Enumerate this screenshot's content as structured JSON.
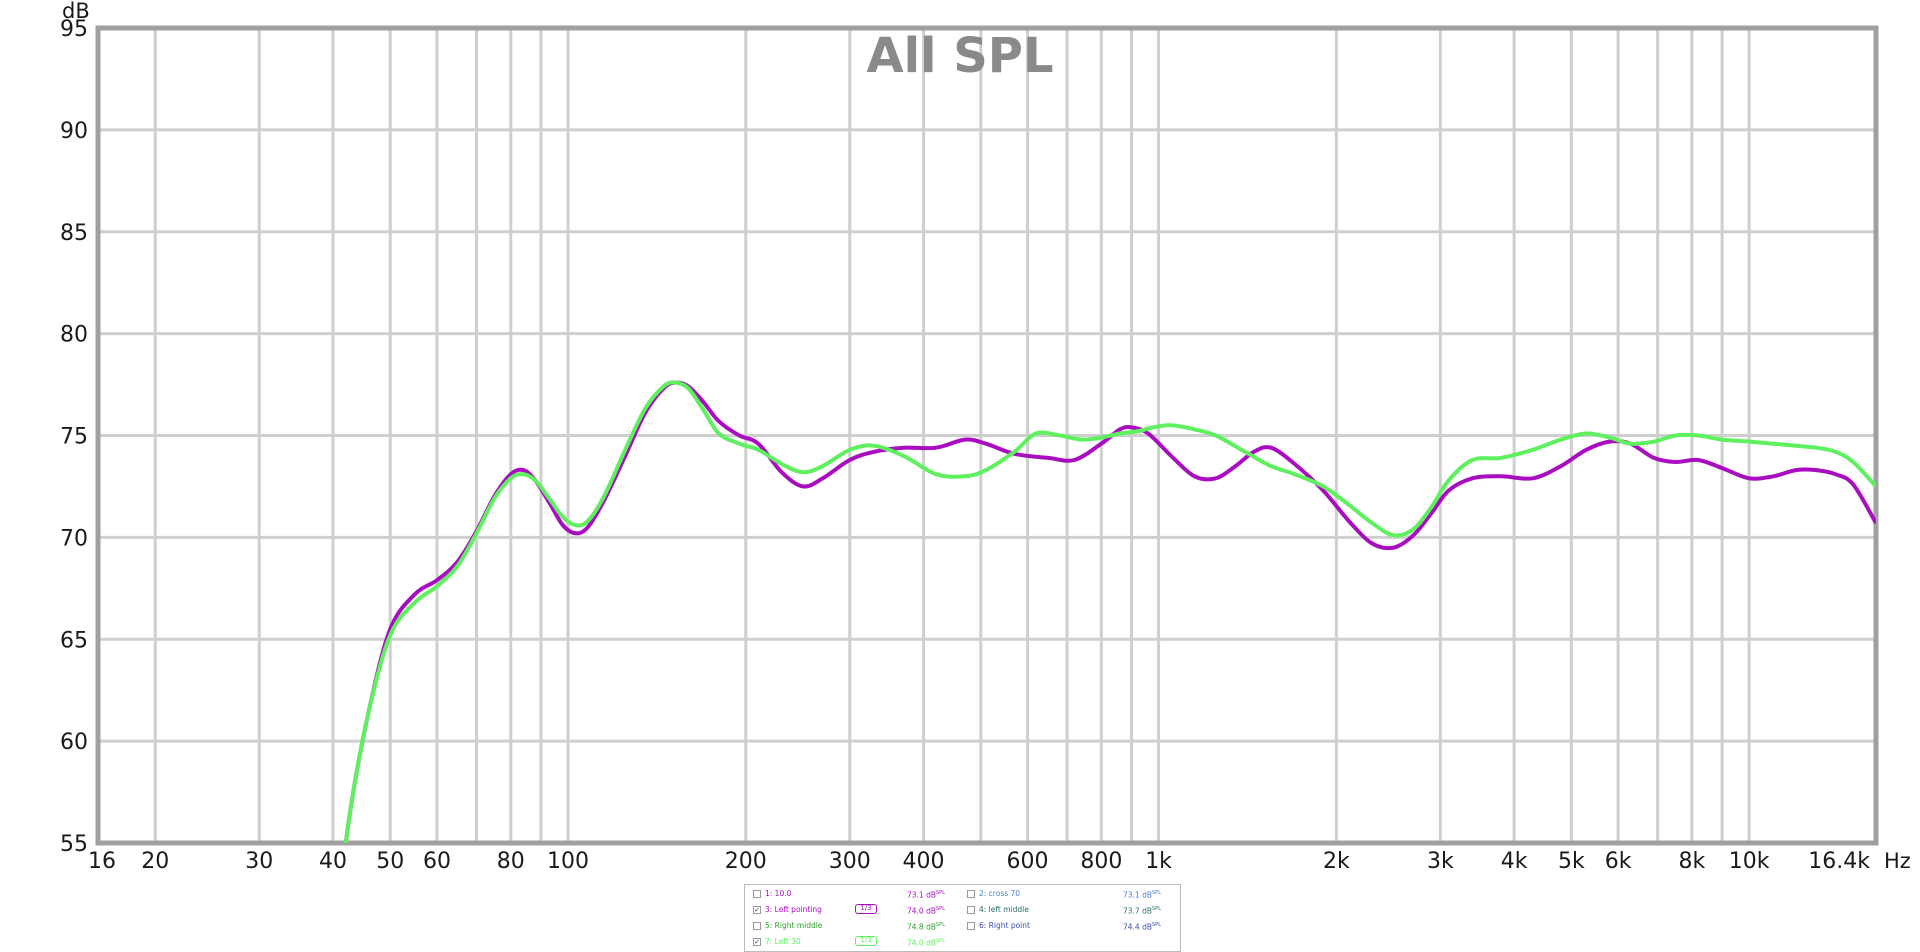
{
  "chart_data": {
    "type": "line",
    "title": "All SPL",
    "ylabel": "dB",
    "xunit": "Hz",
    "x_scale": "log",
    "xlim": [
      16,
      16400
    ],
    "ylim": [
      55,
      95
    ],
    "grid": true,
    "yticks": [
      55,
      60,
      65,
      70,
      75,
      80,
      85,
      90,
      95
    ],
    "xtick_labels": [
      {
        "f": 16,
        "label": "16"
      },
      {
        "f": 20,
        "label": "20"
      },
      {
        "f": 30,
        "label": "30"
      },
      {
        "f": 40,
        "label": "40"
      },
      {
        "f": 50,
        "label": "50"
      },
      {
        "f": 60,
        "label": "60"
      },
      {
        "f": 80,
        "label": "80"
      },
      {
        "f": 100,
        "label": "100"
      },
      {
        "f": 200,
        "label": "200"
      },
      {
        "f": 300,
        "label": "300"
      },
      {
        "f": 400,
        "label": "400"
      },
      {
        "f": 600,
        "label": "600"
      },
      {
        "f": 800,
        "label": "800"
      },
      {
        "f": 1000,
        "label": "1k"
      },
      {
        "f": 2000,
        "label": "2k"
      },
      {
        "f": 3000,
        "label": "3k"
      },
      {
        "f": 4000,
        "label": "4k"
      },
      {
        "f": 5000,
        "label": "5k"
      },
      {
        "f": 6000,
        "label": "6k"
      },
      {
        "f": 8000,
        "label": "8k"
      },
      {
        "f": 10000,
        "label": "10k"
      },
      {
        "f": 16400,
        "label": "16.4k"
      }
    ],
    "grid_freqs": [
      20,
      30,
      40,
      50,
      60,
      70,
      80,
      90,
      100,
      200,
      300,
      400,
      500,
      600,
      700,
      800,
      900,
      1000,
      2000,
      3000,
      4000,
      5000,
      6000,
      7000,
      8000,
      9000,
      10000
    ],
    "series": [
      {
        "name": "3: Left pointing",
        "color": "#a80dbf",
        "points": [
          [
            41,
            52.5
          ],
          [
            43,
            57
          ],
          [
            46,
            61.5
          ],
          [
            50,
            65.5
          ],
          [
            55,
            67.2
          ],
          [
            60,
            67.9
          ],
          [
            65,
            68.8
          ],
          [
            70,
            70.3
          ],
          [
            75,
            72
          ],
          [
            80,
            73.1
          ],
          [
            84,
            73.3
          ],
          [
            88,
            72.8
          ],
          [
            93,
            71.7
          ],
          [
            98,
            70.6
          ],
          [
            103,
            70.2
          ],
          [
            108,
            70.5
          ],
          [
            115,
            71.8
          ],
          [
            125,
            74
          ],
          [
            135,
            76.1
          ],
          [
            145,
            77.3
          ],
          [
            152,
            77.6
          ],
          [
            160,
            77.4
          ],
          [
            170,
            76.6
          ],
          [
            180,
            75.7
          ],
          [
            195,
            75
          ],
          [
            210,
            74.6
          ],
          [
            230,
            73.2
          ],
          [
            250,
            72.5
          ],
          [
            270,
            72.9
          ],
          [
            300,
            73.8
          ],
          [
            330,
            74.2
          ],
          [
            370,
            74.4
          ],
          [
            420,
            74.4
          ],
          [
            470,
            74.8
          ],
          [
            510,
            74.6
          ],
          [
            570,
            74.1
          ],
          [
            650,
            73.9
          ],
          [
            720,
            73.8
          ],
          [
            800,
            74.6
          ],
          [
            860,
            75.3
          ],
          [
            900,
            75.4
          ],
          [
            960,
            75.1
          ],
          [
            1050,
            74
          ],
          [
            1150,
            73
          ],
          [
            1250,
            72.9
          ],
          [
            1350,
            73.5
          ],
          [
            1450,
            74.2
          ],
          [
            1550,
            74.4
          ],
          [
            1700,
            73.6
          ],
          [
            1900,
            72.3
          ],
          [
            2100,
            70.8
          ],
          [
            2300,
            69.7
          ],
          [
            2500,
            69.5
          ],
          [
            2700,
            70.1
          ],
          [
            2900,
            71.2
          ],
          [
            3100,
            72.3
          ],
          [
            3400,
            72.9
          ],
          [
            3800,
            73
          ],
          [
            4300,
            72.9
          ],
          [
            4800,
            73.5
          ],
          [
            5300,
            74.3
          ],
          [
            5800,
            74.7
          ],
          [
            6300,
            74.6
          ],
          [
            6900,
            73.9
          ],
          [
            7500,
            73.7
          ],
          [
            8200,
            73.8
          ],
          [
            9000,
            73.4
          ],
          [
            10000,
            72.9
          ],
          [
            11000,
            73
          ],
          [
            12000,
            73.3
          ],
          [
            13000,
            73.3
          ],
          [
            14000,
            73.1
          ],
          [
            15000,
            72.6
          ],
          [
            16400,
            70.7
          ]
        ]
      },
      {
        "name": "7: Left 30",
        "color": "#5ef05e",
        "points": [
          [
            41,
            52.5
          ],
          [
            43,
            57
          ],
          [
            46,
            61.5
          ],
          [
            50,
            65.2
          ],
          [
            55,
            66.8
          ],
          [
            60,
            67.6
          ],
          [
            65,
            68.6
          ],
          [
            70,
            70.2
          ],
          [
            75,
            71.9
          ],
          [
            80,
            72.9
          ],
          [
            84,
            73.1
          ],
          [
            88,
            72.8
          ],
          [
            93,
            71.9
          ],
          [
            98,
            71
          ],
          [
            103,
            70.6
          ],
          [
            108,
            70.8
          ],
          [
            115,
            72
          ],
          [
            125,
            74.3
          ],
          [
            135,
            76.3
          ],
          [
            145,
            77.4
          ],
          [
            152,
            77.6
          ],
          [
            160,
            77.3
          ],
          [
            170,
            76.2
          ],
          [
            180,
            75.1
          ],
          [
            195,
            74.6
          ],
          [
            210,
            74.3
          ],
          [
            230,
            73.6
          ],
          [
            250,
            73.2
          ],
          [
            270,
            73.5
          ],
          [
            300,
            74.3
          ],
          [
            330,
            74.5
          ],
          [
            370,
            74
          ],
          [
            420,
            73.1
          ],
          [
            470,
            73
          ],
          [
            510,
            73.3
          ],
          [
            570,
            74.2
          ],
          [
            620,
            75.1
          ],
          [
            680,
            75
          ],
          [
            740,
            74.8
          ],
          [
            800,
            74.9
          ],
          [
            860,
            75.1
          ],
          [
            920,
            75.2
          ],
          [
            980,
            75.4
          ],
          [
            1050,
            75.5
          ],
          [
            1150,
            75.3
          ],
          [
            1250,
            75
          ],
          [
            1400,
            74.2
          ],
          [
            1550,
            73.5
          ],
          [
            1700,
            73.1
          ],
          [
            1900,
            72.5
          ],
          [
            2100,
            71.6
          ],
          [
            2300,
            70.7
          ],
          [
            2500,
            70.1
          ],
          [
            2700,
            70.4
          ],
          [
            2900,
            71.5
          ],
          [
            3100,
            72.8
          ],
          [
            3400,
            73.8
          ],
          [
            3800,
            73.9
          ],
          [
            4300,
            74.3
          ],
          [
            4800,
            74.8
          ],
          [
            5300,
            75.1
          ],
          [
            5800,
            74.9
          ],
          [
            6300,
            74.6
          ],
          [
            6900,
            74.7
          ],
          [
            7500,
            75
          ],
          [
            8200,
            75
          ],
          [
            9000,
            74.8
          ],
          [
            10000,
            74.7
          ],
          [
            11000,
            74.6
          ],
          [
            12000,
            74.5
          ],
          [
            13000,
            74.4
          ],
          [
            14000,
            74.2
          ],
          [
            15000,
            73.7
          ],
          [
            16400,
            72.5
          ]
        ]
      }
    ],
    "legend": [
      {
        "label": "1: 10.0",
        "value": "73.1 dB",
        "unit": "SPL",
        "checked": false,
        "color": "#a80dbf"
      },
      {
        "label": "2: cross 70",
        "value": "73.1 dB",
        "unit": "SPL",
        "checked": false,
        "color": "#4a7fd0"
      },
      {
        "label": "3: Left pointing",
        "value": "74.0 dB",
        "unit": "SPL",
        "checked": true,
        "color": "#a80dbf",
        "smoothing": "1/3"
      },
      {
        "label": "4: left middle",
        "value": "73.7 dB",
        "unit": "SPL",
        "checked": false,
        "color": "#2e6e6e"
      },
      {
        "label": "5: Right middle",
        "value": "74.8 dB",
        "unit": "SPL",
        "checked": false,
        "color": "#2f9f2f"
      },
      {
        "label": "6: Right point",
        "value": "74.4 dB",
        "unit": "SPL",
        "checked": false,
        "color": "#3a4fa0"
      },
      {
        "label": "7: Left 30",
        "value": "74.0 dB",
        "unit": "SPL",
        "checked": true,
        "color": "#5ef05e",
        "smoothing": "1/3"
      }
    ]
  }
}
